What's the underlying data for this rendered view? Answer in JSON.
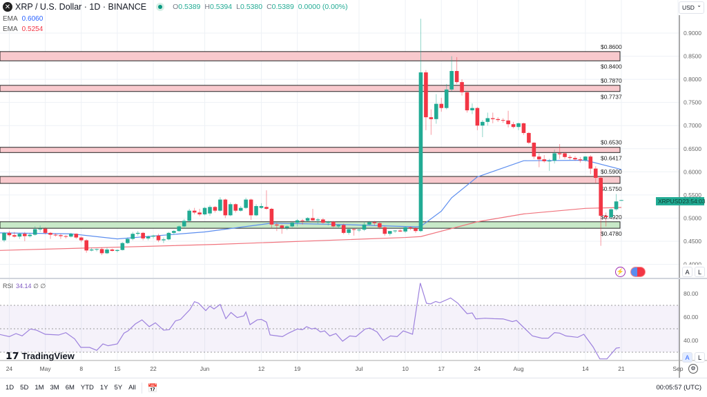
{
  "header": {
    "symbol": "XRP / U.S. Dollar · 1D · BINANCE",
    "open_label": "O",
    "open": "0.5389",
    "high_label": "H",
    "high": "0.5394",
    "low_label": "L",
    "low": "0.5380",
    "close_label": "C",
    "close": "0.5389",
    "change": "0.0000 (0.00%)"
  },
  "indicators": [
    {
      "label": "EMA",
      "value": "0.6060",
      "color": "#2962ff"
    },
    {
      "label": "EMA",
      "value": "0.5254",
      "color": "#f23645"
    }
  ],
  "currency_select": "USD",
  "price_tag": {
    "symbol": "XRPUSD",
    "countdown": "23:54:03"
  },
  "price_axis": [
    "0.9000",
    "0.8500",
    "0.8000",
    "0.7500",
    "0.7000",
    "0.6500",
    "0.6000",
    "0.5500",
    "0.5000",
    "0.4500",
    "0.4000"
  ],
  "zones": [
    {
      "top": 0.86,
      "bottom": 0.84,
      "top_label": "$0.8600",
      "bottom_label": "$0.8400",
      "color": "#f8c9cd"
    },
    {
      "top": 0.787,
      "bottom": 0.7737,
      "top_label": "$0.7870",
      "bottom_label": "$0.7737",
      "color": "#f8c9cd"
    },
    {
      "top": 0.653,
      "bottom": 0.6417,
      "top_label": "$0.6530",
      "bottom_label": "$0.6417",
      "color": "#f8c9cd"
    },
    {
      "top": 0.59,
      "bottom": 0.575,
      "top_label": "$0.5900",
      "bottom_label": "$0.5750",
      "color": "#f8c9cd"
    },
    {
      "top": 0.492,
      "bottom": 0.478,
      "top_label": "$0.4920",
      "bottom_label": "$0.4780",
      "color": "#c8e9c8"
    }
  ],
  "colors": {
    "up": "#22ab94",
    "down": "#f23645",
    "ema_fast": "#5b8def",
    "ema_slow": "#f0727c",
    "rsi": "#9c80dd"
  },
  "candles": [
    [
      0.452,
      0.47,
      0.448,
      0.468
    ],
    [
      0.468,
      0.472,
      0.46,
      0.463
    ],
    [
      0.463,
      0.47,
      0.458,
      0.46
    ],
    [
      0.46,
      0.468,
      0.455,
      0.466
    ],
    [
      0.466,
      0.47,
      0.45,
      0.461
    ],
    [
      0.461,
      0.468,
      0.458,
      0.464
    ],
    [
      0.464,
      0.482,
      0.462,
      0.476
    ],
    [
      0.476,
      0.484,
      0.47,
      0.477
    ],
    [
      0.477,
      0.48,
      0.465,
      0.468
    ],
    [
      0.468,
      0.47,
      0.455,
      0.464
    ],
    [
      0.464,
      0.467,
      0.46,
      0.463
    ],
    [
      0.463,
      0.466,
      0.455,
      0.461
    ],
    [
      0.461,
      0.463,
      0.456,
      0.46
    ],
    [
      0.46,
      0.468,
      0.458,
      0.466
    ],
    [
      0.466,
      0.467,
      0.455,
      0.458
    ],
    [
      0.458,
      0.46,
      0.448,
      0.452
    ],
    [
      0.452,
      0.454,
      0.425,
      0.43
    ],
    [
      0.43,
      0.436,
      0.428,
      0.432
    ],
    [
      0.432,
      0.434,
      0.428,
      0.433
    ],
    [
      0.433,
      0.436,
      0.42,
      0.424
    ],
    [
      0.424,
      0.436,
      0.422,
      0.432
    ],
    [
      0.432,
      0.434,
      0.428,
      0.429
    ],
    [
      0.429,
      0.432,
      0.426,
      0.431
    ],
    [
      0.431,
      0.448,
      0.43,
      0.446
    ],
    [
      0.446,
      0.458,
      0.444,
      0.455
    ],
    [
      0.455,
      0.47,
      0.452,
      0.466
    ],
    [
      0.466,
      0.472,
      0.462,
      0.468
    ],
    [
      0.468,
      0.47,
      0.452,
      0.456
    ],
    [
      0.456,
      0.462,
      0.452,
      0.46
    ],
    [
      0.46,
      0.464,
      0.456,
      0.462
    ],
    [
      0.462,
      0.466,
      0.448,
      0.452
    ],
    [
      0.452,
      0.458,
      0.446,
      0.454
    ],
    [
      0.454,
      0.47,
      0.452,
      0.468
    ],
    [
      0.468,
      0.474,
      0.464,
      0.472
    ],
    [
      0.472,
      0.484,
      0.47,
      0.482
    ],
    [
      0.482,
      0.498,
      0.48,
      0.494
    ],
    [
      0.494,
      0.52,
      0.492,
      0.516
    ],
    [
      0.516,
      0.522,
      0.508,
      0.512
    ],
    [
      0.512,
      0.52,
      0.504,
      0.508
    ],
    [
      0.508,
      0.524,
      0.506,
      0.522
    ],
    [
      0.51,
      0.528,
      0.505,
      0.524
    ],
    [
      0.524,
      0.526,
      0.512,
      0.516
    ],
    [
      0.516,
      0.545,
      0.514,
      0.54
    ],
    [
      0.54,
      0.542,
      0.5,
      0.506
    ],
    [
      0.506,
      0.534,
      0.504,
      0.53
    ],
    [
      0.53,
      0.532,
      0.512,
      0.516
    ],
    [
      0.516,
      0.526,
      0.514,
      0.522
    ],
    [
      0.522,
      0.544,
      0.52,
      0.54
    ],
    [
      0.54,
      0.542,
      0.496,
      0.506
    ],
    [
      0.506,
      0.53,
      0.504,
      0.526
    ],
    [
      0.522,
      0.532,
      0.52,
      0.526
    ],
    [
      0.524,
      0.56,
      0.518,
      0.52
    ],
    [
      0.52,
      0.522,
      0.478,
      0.486
    ],
    [
      0.486,
      0.49,
      0.472,
      0.484
    ],
    [
      0.484,
      0.486,
      0.466,
      0.479
    ],
    [
      0.479,
      0.484,
      0.474,
      0.482
    ],
    [
      0.482,
      0.492,
      0.48,
      0.49
    ],
    [
      0.49,
      0.498,
      0.482,
      0.495
    ],
    [
      0.495,
      0.498,
      0.486,
      0.494
    ],
    [
      0.494,
      0.502,
      0.492,
      0.5
    ],
    [
      0.5,
      0.52,
      0.494,
      0.495
    ],
    [
      0.495,
      0.5,
      0.488,
      0.497
    ],
    [
      0.497,
      0.5,
      0.488,
      0.49
    ],
    [
      0.49,
      0.494,
      0.484,
      0.492
    ],
    [
      0.492,
      0.494,
      0.48,
      0.482
    ],
    [
      0.482,
      0.486,
      0.478,
      0.485
    ],
    [
      0.485,
      0.488,
      0.465,
      0.468
    ],
    [
      0.468,
      0.478,
      0.464,
      0.476
    ],
    [
      0.476,
      0.478,
      0.462,
      0.475
    ],
    [
      0.475,
      0.478,
      0.47,
      0.475
    ],
    [
      0.475,
      0.492,
      0.472,
      0.486
    ],
    [
      0.486,
      0.494,
      0.484,
      0.491
    ],
    [
      0.491,
      0.494,
      0.484,
      0.489
    ],
    [
      0.489,
      0.492,
      0.476,
      0.48
    ],
    [
      0.48,
      0.482,
      0.462,
      0.466
    ],
    [
      0.466,
      0.472,
      0.462,
      0.472
    ],
    [
      0.472,
      0.474,
      0.468,
      0.473
    ],
    [
      0.473,
      0.476,
      0.47,
      0.471
    ],
    [
      0.471,
      0.482,
      0.468,
      0.48
    ],
    [
      0.48,
      0.482,
      0.474,
      0.478
    ],
    [
      0.478,
      0.48,
      0.468,
      0.472
    ],
    [
      0.472,
      0.931,
      0.47,
      0.815
    ],
    [
      0.815,
      0.82,
      0.69,
      0.718
    ],
    [
      0.718,
      0.735,
      0.68,
      0.714
    ],
    [
      0.714,
      0.768,
      0.704,
      0.747
    ],
    [
      0.747,
      0.76,
      0.73,
      0.738
    ],
    [
      0.738,
      0.79,
      0.735,
      0.778
    ],
    [
      0.778,
      0.85,
      0.774,
      0.818
    ],
    [
      0.818,
      0.848,
      0.79,
      0.794
    ],
    [
      0.794,
      0.8,
      0.765,
      0.772
    ],
    [
      0.772,
      0.775,
      0.728,
      0.733
    ],
    [
      0.733,
      0.748,
      0.725,
      0.738
    ],
    [
      0.738,
      0.74,
      0.69,
      0.7
    ],
    [
      0.7,
      0.712,
      0.675,
      0.708
    ],
    [
      0.708,
      0.728,
      0.7,
      0.716
    ],
    [
      0.716,
      0.728,
      0.705,
      0.714
    ],
    [
      0.714,
      0.718,
      0.708,
      0.712
    ],
    [
      0.712,
      0.716,
      0.706,
      0.711
    ],
    [
      0.711,
      0.732,
      0.696,
      0.703
    ],
    [
      0.703,
      0.708,
      0.694,
      0.697
    ],
    [
      0.697,
      0.706,
      0.69,
      0.705
    ],
    [
      0.705,
      0.706,
      0.68,
      0.684
    ],
    [
      0.684,
      0.686,
      0.66,
      0.663
    ],
    [
      0.663,
      0.664,
      0.628,
      0.633
    ],
    [
      0.633,
      0.64,
      0.61,
      0.627
    ],
    [
      0.627,
      0.636,
      0.62,
      0.623
    ],
    [
      0.623,
      0.628,
      0.602,
      0.624
    ],
    [
      0.624,
      0.648,
      0.618,
      0.64
    ],
    [
      0.64,
      0.66,
      0.628,
      0.638
    ],
    [
      0.64,
      0.642,
      0.628,
      0.632
    ],
    [
      0.632,
      0.636,
      0.626,
      0.63
    ],
    [
      0.63,
      0.634,
      0.624,
      0.627
    ],
    [
      0.627,
      0.632,
      0.62,
      0.625
    ],
    [
      0.625,
      0.634,
      0.622,
      0.633
    ],
    [
      0.633,
      0.636,
      0.595,
      0.607
    ],
    [
      0.607,
      0.612,
      0.575,
      0.587
    ],
    [
      0.587,
      0.59,
      0.44,
      0.505
    ],
    [
      0.505,
      0.512,
      0.482,
      0.502
    ],
    [
      0.502,
      0.521,
      0.5,
      0.519
    ],
    [
      0.519,
      0.552,
      0.516,
      0.536
    ],
    [
      0.5389,
      0.5394,
      0.538,
      0.5389
    ]
  ],
  "ema_fast": [
    [
      -1,
      0.468
    ],
    [
      13,
      0.466
    ],
    [
      22,
      0.455
    ],
    [
      39,
      0.47
    ],
    [
      52,
      0.489
    ],
    [
      66,
      0.486
    ],
    [
      80,
      0.481
    ],
    [
      81,
      0.482
    ],
    [
      85,
      0.515
    ],
    [
      87,
      0.544
    ],
    [
      92,
      0.589
    ],
    [
      101,
      0.624
    ],
    [
      113,
      0.625
    ],
    [
      120,
      0.605
    ]
  ],
  "ema_slow": [
    [
      -1,
      0.43
    ],
    [
      41,
      0.443
    ],
    [
      78,
      0.458
    ],
    [
      81,
      0.46
    ],
    [
      92,
      0.492
    ],
    [
      101,
      0.509
    ],
    [
      113,
      0.521
    ],
    [
      120,
      0.523
    ]
  ],
  "rsi": {
    "label": "RSI",
    "value": "34.14",
    "extra1": "∅",
    "extra2": "∅",
    "axis": [
      "80.00",
      "60.00",
      "40.00"
    ],
    "points": [
      [
        -1,
        45.3
      ],
      [
        1,
        43.3
      ],
      [
        2.3,
        45.9
      ],
      [
        3.5,
        43.9
      ],
      [
        5.1,
        49.8
      ],
      [
        6.3,
        48.8
      ],
      [
        8,
        45.3
      ],
      [
        10.6,
        44.7
      ],
      [
        12,
        46.7
      ],
      [
        13.7,
        41.4
      ],
      [
        14.9,
        34.1
      ],
      [
        16.6,
        34.1
      ],
      [
        18,
        31.6
      ],
      [
        19.2,
        37.1
      ],
      [
        20.2,
        35.5
      ],
      [
        22,
        37.1
      ],
      [
        23.3,
        46.3
      ],
      [
        24.1,
        48.2
      ],
      [
        25.5,
        54.1
      ],
      [
        26.8,
        57.6
      ],
      [
        28.2,
        51.8
      ],
      [
        29.4,
        55.1
      ],
      [
        31,
        48.8
      ],
      [
        32.1,
        49.2
      ],
      [
        33.3,
        56.7
      ],
      [
        34.3,
        58.0
      ],
      [
        36.1,
        66.3
      ],
      [
        37,
        73.1
      ],
      [
        37.8,
        71.8
      ],
      [
        39.2,
        65.5
      ],
      [
        40,
        69.4
      ],
      [
        40.8,
        66.9
      ],
      [
        42,
        70.8
      ],
      [
        43.1,
        58.6
      ],
      [
        44.1,
        63.9
      ],
      [
        45.3,
        59.6
      ],
      [
        46.6,
        61.0
      ],
      [
        47,
        64.3
      ],
      [
        47.8,
        53.5
      ],
      [
        49.2,
        57.6
      ],
      [
        50,
        58.0
      ],
      [
        51,
        55.7
      ],
      [
        51.7,
        44.7
      ],
      [
        53.1,
        43.9
      ],
      [
        54.1,
        43.3
      ],
      [
        55.3,
        46.3
      ],
      [
        57,
        49.8
      ],
      [
        58,
        49.2
      ],
      [
        58.8,
        51.8
      ],
      [
        59.8,
        49.8
      ],
      [
        60.5,
        50.6
      ],
      [
        61.5,
        47.3
      ],
      [
        62.3,
        48.2
      ],
      [
        63.3,
        43.9
      ],
      [
        64.5,
        45.9
      ],
      [
        65.8,
        39.4
      ],
      [
        67.2,
        43.9
      ],
      [
        68.4,
        43.3
      ],
      [
        70.2,
        49.8
      ],
      [
        71.1,
        50.6
      ],
      [
        72.5,
        47.3
      ],
      [
        73.7,
        40.0
      ],
      [
        75.1,
        43.9
      ],
      [
        76.4,
        43.3
      ],
      [
        77.6,
        48.2
      ],
      [
        79.4,
        45.3
      ],
      [
        80.9,
        89.0
      ],
      [
        82.1,
        71.8
      ],
      [
        82.9,
        71.2
      ],
      [
        83.9,
        73.3
      ],
      [
        84.7,
        72.2
      ],
      [
        86.8,
        76.3
      ],
      [
        88.2,
        71.8
      ],
      [
        90,
        62.9
      ],
      [
        91,
        63.5
      ],
      [
        91.7,
        58.4
      ],
      [
        93.5,
        59.0
      ],
      [
        95.2,
        58.6
      ],
      [
        97,
        58.4
      ],
      [
        98.8,
        56.1
      ],
      [
        99.6,
        57.1
      ],
      [
        102.7,
        43.9
      ],
      [
        104.5,
        42.0
      ],
      [
        105.8,
        42.0
      ],
      [
        107,
        46.7
      ],
      [
        108,
        46.3
      ],
      [
        109.2,
        43.9
      ],
      [
        111.5,
        42.7
      ],
      [
        112.7,
        45.3
      ],
      [
        114.5,
        34.5
      ],
      [
        115.8,
        24.3
      ],
      [
        117.2,
        24.3
      ],
      [
        119,
        33.5
      ],
      [
        119.7,
        33.9
      ]
    ]
  },
  "time_axis": [
    {
      "i": 1,
      "label": "24"
    },
    {
      "i": 8,
      "label": "May"
    },
    {
      "i": 15,
      "label": "8"
    },
    {
      "i": 22,
      "label": "15"
    },
    {
      "i": 29,
      "label": "22"
    },
    {
      "i": 39,
      "label": "Jun"
    },
    {
      "i": 50,
      "label": "12"
    },
    {
      "i": 57,
      "label": "19"
    },
    {
      "i": 69,
      "label": "Jul"
    },
    {
      "i": 78,
      "label": "10"
    },
    {
      "i": 85,
      "label": "17"
    },
    {
      "i": 92,
      "label": "24"
    },
    {
      "i": 100,
      "label": "Aug"
    },
    {
      "i": 113,
      "label": "14"
    },
    {
      "i": 120,
      "label": "21"
    },
    {
      "i": 131,
      "label": "Sep"
    }
  ],
  "scale_buttons": {
    "auto": "A",
    "log": "L"
  },
  "brand": "TradingView",
  "ranges": [
    "1D",
    "5D",
    "1M",
    "3M",
    "6M",
    "YTD",
    "1Y",
    "5Y",
    "All"
  ],
  "clock": "00:05:57 (UTC)"
}
